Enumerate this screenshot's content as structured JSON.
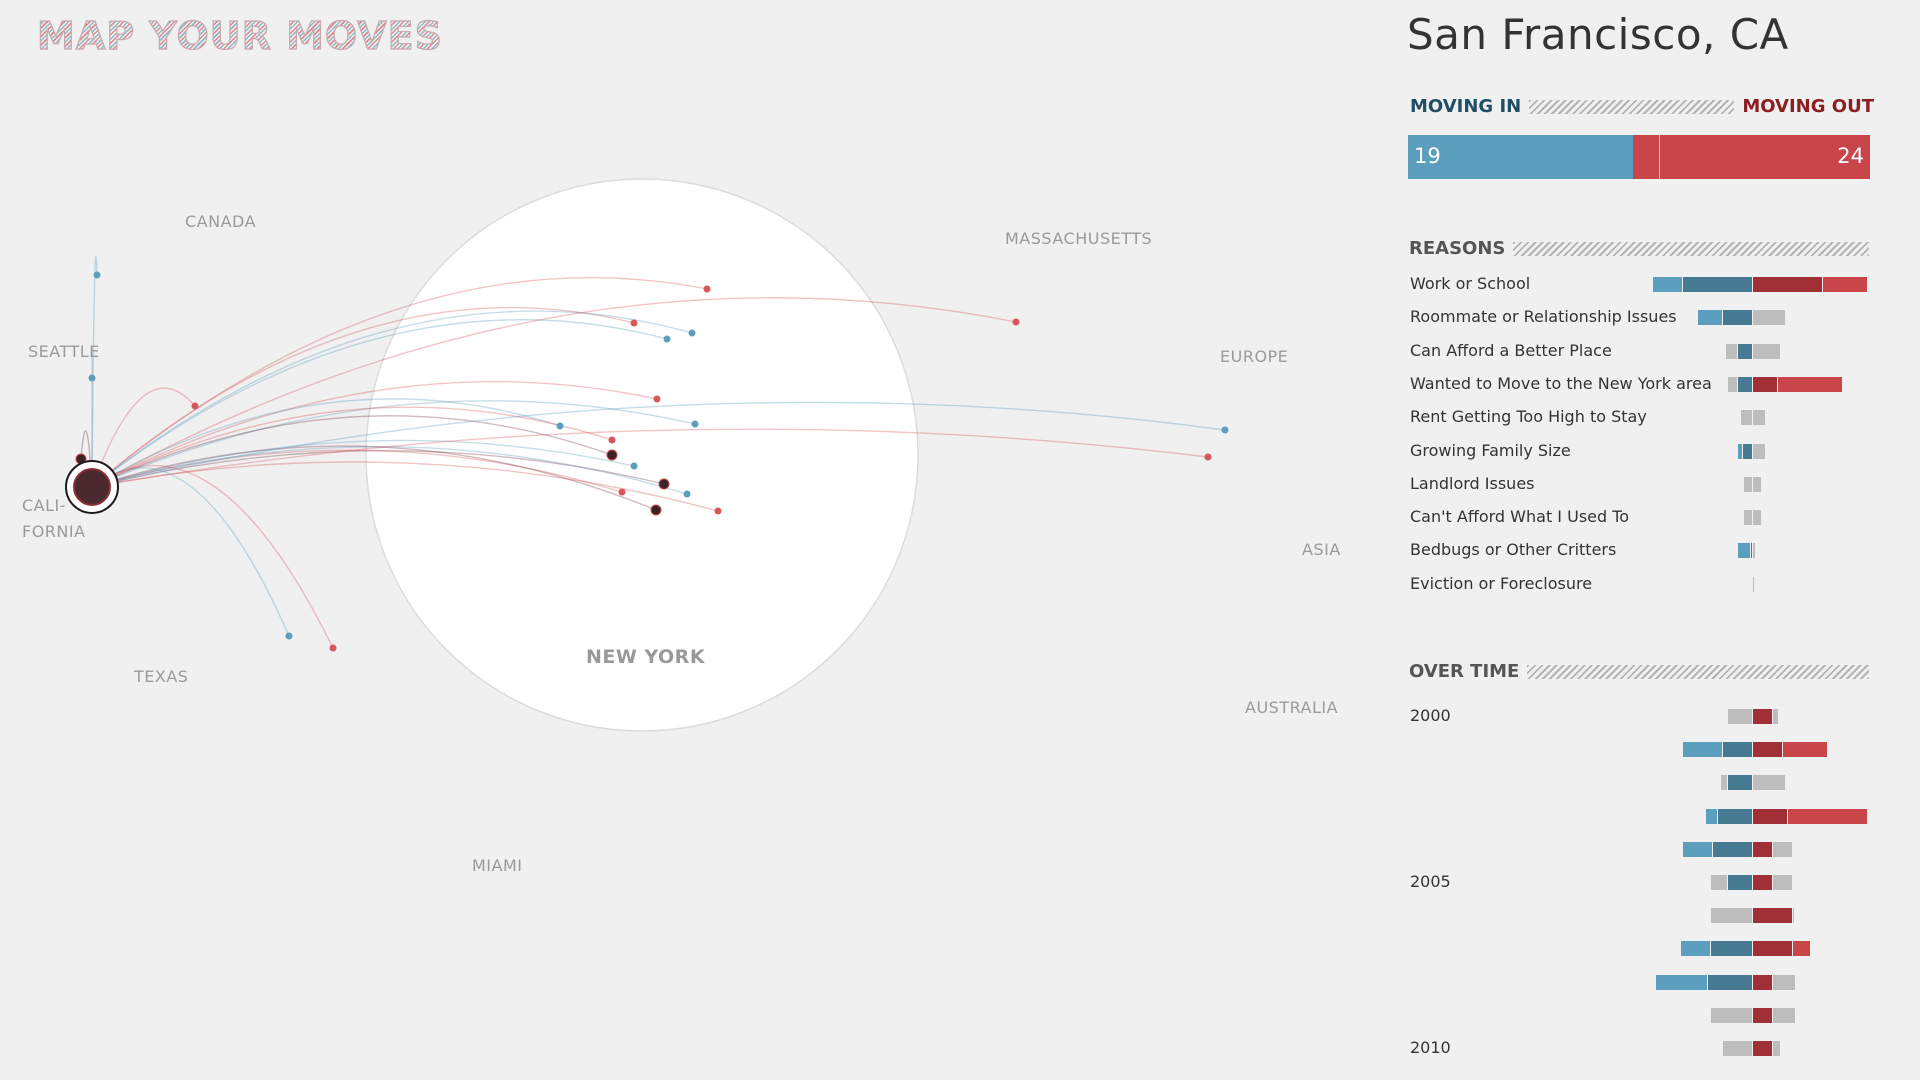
{
  "logo": "MAP YOUR MOVES",
  "city": "San Francisco, CA",
  "moving": {
    "in_label": "MOVING IN",
    "out_label": "MOVING OUT",
    "in_count": 19,
    "out_count": 24
  },
  "colors": {
    "in": "#5b9ebd",
    "in_dark": "#467a92",
    "out": "#c8454a",
    "out_dark": "#a03036",
    "neutral": "#bdbdbd"
  },
  "regions": {
    "canada": "CANADA",
    "seattle": "SEATTLE",
    "california": "CALI-\nFORNIA",
    "texas": "TEXAS",
    "new_york": "NEW YORK",
    "miami": "MIAMI",
    "massachusetts": "MASSACHUSETTS",
    "europe": "EUROPE",
    "asia": "ASIA",
    "australia": "AUSTRALIA"
  },
  "reasons": {
    "title": "REASONS",
    "items": [
      {
        "label": "Work or School",
        "in_light": 0.6,
        "in_dark": 1.4,
        "out_dark": 1.4,
        "out_light": 0.9
      },
      {
        "label": "Roommate or Relationship Issues",
        "in_light": 0.5,
        "in_dark": 0.6,
        "out_dark": 0,
        "out_light": 0,
        "neutral_out": 0.65
      },
      {
        "label": "Can Afford a Better Place",
        "neutral_in": 0.25,
        "in_dark": 0.3,
        "neutral_out": 0.55
      },
      {
        "label": "Wanted to Move to the New York area",
        "neutral_in": 0.2,
        "in_dark": 0.3,
        "out_dark": 0.5,
        "out_light": 1.3
      },
      {
        "label": "Rent Getting Too High to Stay",
        "neutral_in": 0.25,
        "neutral_out": 0.25
      },
      {
        "label": "Growing Family Size",
        "in_light": 0.1,
        "in_dark": 0.2,
        "neutral_out": 0.25
      },
      {
        "label": "Landlord Issues",
        "neutral_in": 0.18,
        "neutral_out": 0.18
      },
      {
        "label": "Can't Afford What I Used To",
        "neutral_in": 0.18,
        "neutral_out": 0.18
      },
      {
        "label": "Bedbugs or Other Critters",
        "in_light": 0.25,
        "in_dark": 0.05,
        "neutral_out": 0.06
      },
      {
        "label": "Eviction or Foreclosure",
        "neutral_in": 0.03,
        "neutral_out": 0.03
      }
    ]
  },
  "over_time": {
    "title": "OVER TIME",
    "years": [
      {
        "label": "2000",
        "neutral_in": 0.5,
        "out_dark": 0.4,
        "neutral_out": 0.12
      },
      {
        "label": "",
        "in_light": 0.8,
        "in_dark": 0.6,
        "out_dark": 0.6,
        "out_light": 0.9
      },
      {
        "label": "",
        "neutral_in": 0.15,
        "in_dark": 0.5,
        "neutral_out": 0.65
      },
      {
        "label": "",
        "in_light": 0.25,
        "in_dark": 0.7,
        "out_dark": 0.7,
        "out_light": 1.6
      },
      {
        "label": "",
        "in_light": 0.6,
        "in_dark": 0.8,
        "out_dark": 0.4,
        "neutral_out": 0.4
      },
      {
        "label": "2005",
        "neutral_in": 0.35,
        "in_dark": 0.5,
        "out_dark": 0.4,
        "neutral_out": 0.4
      },
      {
        "label": "",
        "neutral_in": 0.85,
        "out_dark": 0.8,
        "neutral_out": 0.04
      },
      {
        "label": "",
        "in_light": 0.6,
        "in_dark": 0.85,
        "out_dark": 0.8,
        "out_light": 0.35
      },
      {
        "label": "",
        "in_light": 1.05,
        "in_dark": 0.9,
        "out_dark": 0.4,
        "neutral_out": 0.45
      },
      {
        "label": "",
        "neutral_in": 0.85,
        "out_dark": 0.4,
        "neutral_out": 0.45
      },
      {
        "label": "2010",
        "neutral_in": 0.6,
        "out_dark": 0.4,
        "neutral_out": 0.15
      }
    ]
  }
}
